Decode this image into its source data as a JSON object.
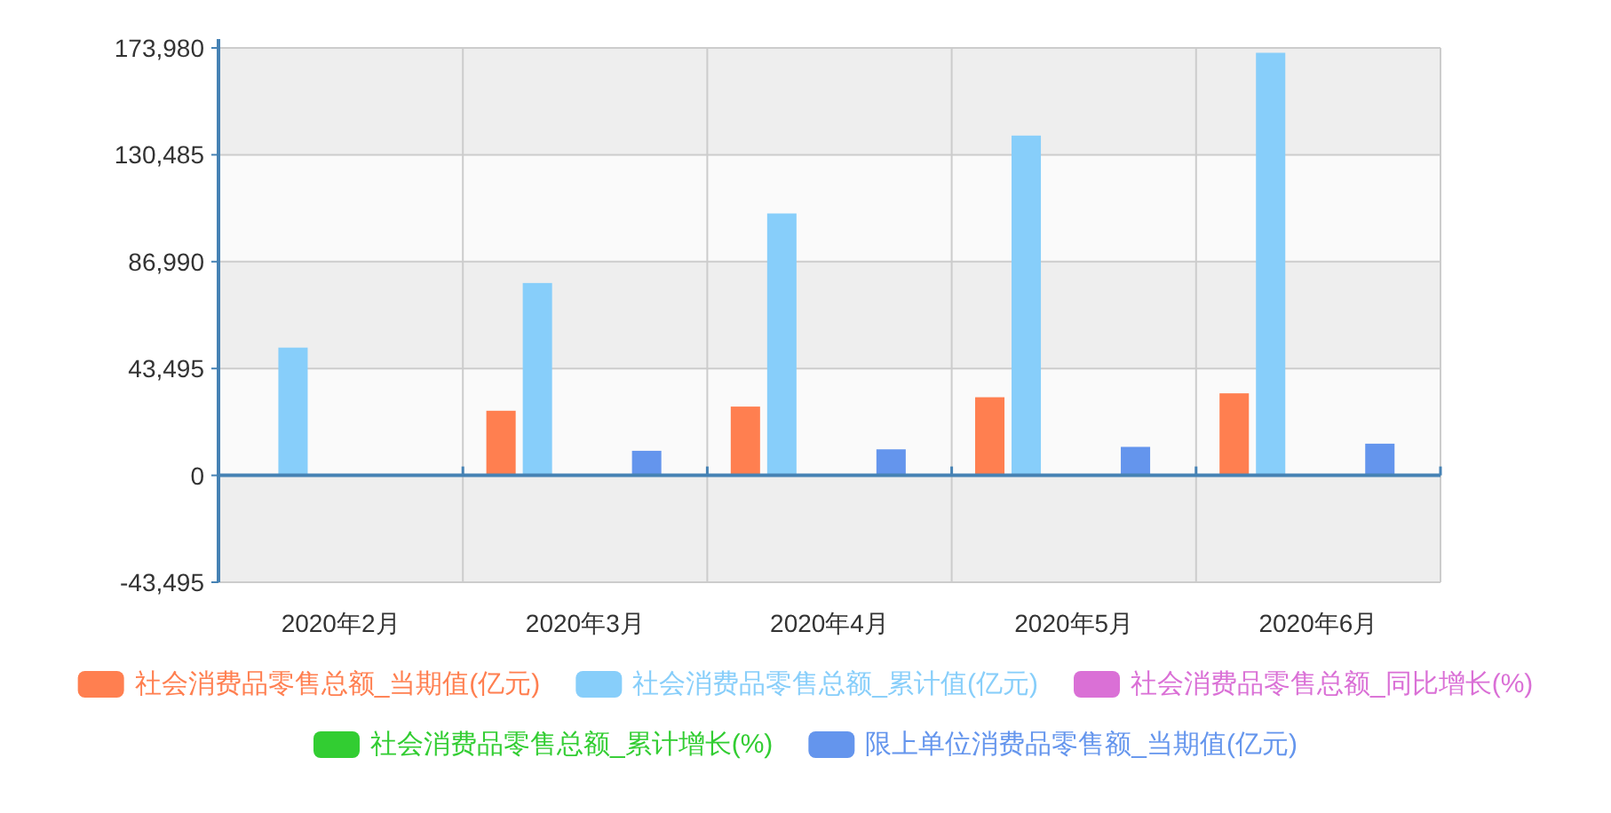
{
  "chart_data": {
    "type": "bar",
    "categories": [
      "2020年2月",
      "2020年3月",
      "2020年4月",
      "2020年5月",
      "2020年6月"
    ],
    "series": [
      {
        "name": "社会消费品零售总额_当期值(亿元)",
        "color": "#ff7f50",
        "values": [
          null,
          26300,
          28000,
          31800,
          33400
        ]
      },
      {
        "name": "社会消费品零售总额_累计值(亿元)",
        "color": "#87cefa",
        "values": [
          52000,
          78300,
          106600,
          138300,
          172000
        ]
      },
      {
        "name": "社会消费品零售总额_同比增长(%)",
        "color": "#da70d6",
        "values": [
          null,
          null,
          null,
          null,
          null
        ]
      },
      {
        "name": "社会消费品零售总额_累计增长(%)",
        "color": "#32cd32",
        "values": [
          null,
          null,
          null,
          null,
          null
        ]
      },
      {
        "name": "限上单位消费品零售额_当期值(亿元)",
        "color": "#6495ed",
        "values": [
          null,
          10000,
          10600,
          11600,
          12900
        ]
      }
    ],
    "ylim": [
      -43495,
      173980
    ],
    "yticks": [
      {
        "value": -43495,
        "label": "-43,495"
      },
      {
        "value": 0,
        "label": "0"
      },
      {
        "value": 43495,
        "label": "43,495"
      },
      {
        "value": 86990,
        "label": "86,990"
      },
      {
        "value": 130485,
        "label": "130,485"
      },
      {
        "value": 173980,
        "label": "173,980"
      }
    ],
    "ref_lines": [
      {
        "axis": "y",
        "value": 0,
        "color": "#4682b4"
      }
    ],
    "grid": true,
    "legend": "bottom"
  }
}
